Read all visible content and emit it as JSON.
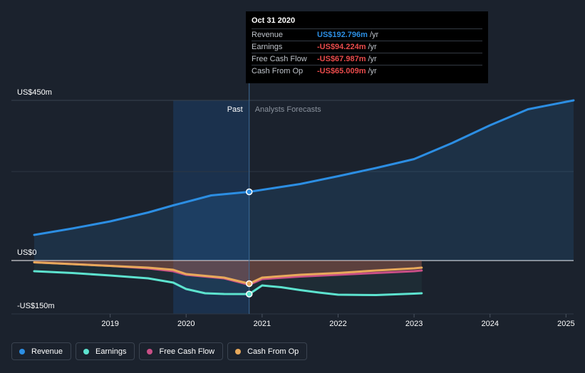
{
  "chart_data": {
    "type": "line",
    "y_axis": {
      "ylim": [
        -150,
        450
      ],
      "ticks": [
        450,
        0,
        -150
      ],
      "tick_labels": [
        "US$450m",
        "US$0",
        "-US$150m"
      ]
    },
    "x_axis": {
      "xlim": [
        2018.0,
        2025.1
      ],
      "ticks": [
        2019,
        2020,
        2021,
        2022,
        2023,
        2024,
        2025
      ],
      "tick_labels": [
        "2019",
        "2020",
        "2021",
        "2022",
        "2023",
        "2024",
        "2025"
      ]
    },
    "past_shade_start": 2019.83,
    "divider_x": 2020.83,
    "region_labels": {
      "past": "Past",
      "forecast": "Analysts Forecasts"
    },
    "highlight_x": 2020.83,
    "series": [
      {
        "name": "Revenue",
        "color": "#2c8ee3",
        "points": [
          [
            2018.0,
            72
          ],
          [
            2018.5,
            90
          ],
          [
            2019.0,
            110
          ],
          [
            2019.5,
            135
          ],
          [
            2019.83,
            155
          ],
          [
            2020.33,
            183
          ],
          [
            2020.83,
            193
          ],
          [
            2021.5,
            215
          ],
          [
            2022.0,
            237
          ],
          [
            2022.5,
            260
          ],
          [
            2023.0,
            285
          ],
          [
            2023.5,
            330
          ],
          [
            2024.0,
            380
          ],
          [
            2024.5,
            425
          ],
          [
            2025.1,
            450
          ]
        ]
      },
      {
        "name": "Earnings",
        "color": "#5de3cf",
        "points": [
          [
            2018.0,
            -30
          ],
          [
            2018.5,
            -35
          ],
          [
            2019.0,
            -42
          ],
          [
            2019.5,
            -50
          ],
          [
            2019.83,
            -62
          ],
          [
            2020.0,
            -80
          ],
          [
            2020.25,
            -92
          ],
          [
            2020.5,
            -94
          ],
          [
            2020.83,
            -94.2
          ],
          [
            2021.0,
            -70
          ],
          [
            2021.25,
            -75
          ],
          [
            2021.5,
            -83
          ],
          [
            2021.75,
            -90
          ],
          [
            2022.0,
            -96
          ],
          [
            2022.5,
            -97
          ],
          [
            2023.0,
            -93
          ],
          [
            2023.1,
            -92
          ]
        ]
      },
      {
        "name": "Free Cash Flow",
        "color": "#c94f86",
        "points": [
          [
            2018.0,
            -5
          ],
          [
            2018.5,
            -10
          ],
          [
            2019.0,
            -15
          ],
          [
            2019.5,
            -22
          ],
          [
            2019.83,
            -30
          ],
          [
            2020.0,
            -40
          ],
          [
            2020.5,
            -50
          ],
          [
            2020.83,
            -68
          ],
          [
            2021.0,
            -52
          ],
          [
            2021.5,
            -45
          ],
          [
            2022.0,
            -40
          ],
          [
            2022.5,
            -35
          ],
          [
            2023.0,
            -30
          ],
          [
            2023.1,
            -28
          ]
        ]
      },
      {
        "name": "Cash From Op",
        "color": "#e8a95b",
        "points": [
          [
            2018.0,
            -5
          ],
          [
            2018.5,
            -10
          ],
          [
            2019.0,
            -15
          ],
          [
            2019.5,
            -20
          ],
          [
            2019.83,
            -26
          ],
          [
            2020.0,
            -38
          ],
          [
            2020.5,
            -48
          ],
          [
            2020.83,
            -65
          ],
          [
            2021.0,
            -48
          ],
          [
            2021.5,
            -40
          ],
          [
            2022.0,
            -35
          ],
          [
            2022.5,
            -28
          ],
          [
            2023.0,
            -22
          ],
          [
            2023.1,
            -20
          ]
        ]
      }
    ]
  },
  "tooltip": {
    "date": "Oct 31 2020",
    "rows": [
      {
        "name": "Revenue",
        "value": "US$192.796m",
        "unit": "/yr",
        "color": "#2c8ee3"
      },
      {
        "name": "Earnings",
        "value": "-US$94.224m",
        "unit": "/yr",
        "color": "#e94b4b"
      },
      {
        "name": "Free Cash Flow",
        "value": "-US$67.987m",
        "unit": "/yr",
        "color": "#e94b4b"
      },
      {
        "name": "Cash From Op",
        "value": "-US$65.009m",
        "unit": "/yr",
        "color": "#e94b4b"
      }
    ]
  },
  "legend": [
    {
      "label": "Revenue",
      "color": "#2c8ee3"
    },
    {
      "label": "Earnings",
      "color": "#5de3cf"
    },
    {
      "label": "Free Cash Flow",
      "color": "#c94f86"
    },
    {
      "label": "Cash From Op",
      "color": "#e8a95b"
    }
  ]
}
